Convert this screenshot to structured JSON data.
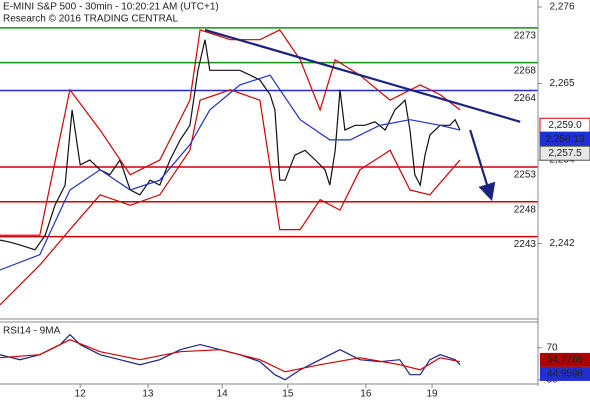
{
  "chart_data": {
    "type": "line",
    "title": "E-MINI S&P 500 - 30min - 10:20:21 AM (UTC+1)",
    "subtitle": "Research © 2016 TRADING CENTRAL",
    "xlim": [
      0,
      100
    ],
    "xticks": [
      {
        "value": 14.9,
        "label": "12"
      },
      {
        "value": 27.5,
        "label": "13"
      },
      {
        "value": 41.3,
        "label": "14"
      },
      {
        "value": 53.5,
        "label": "15"
      },
      {
        "value": 68.0,
        "label": "16"
      },
      {
        "value": 80.3,
        "label": "19"
      }
    ],
    "ylim": [
      2231.3,
      2277
    ],
    "yticks": [
      {
        "value": 2276,
        "label": "2,276"
      },
      {
        "value": 2265,
        "label": "2,265"
      },
      {
        "value": 2254,
        "label": "2,254"
      },
      {
        "value": 2242,
        "label": "2,242"
      }
    ],
    "levels": [
      {
        "value": 2273,
        "color": "#1a8c1a"
      },
      {
        "value": 2268,
        "color": "#1a8c1a"
      },
      {
        "value": 2264,
        "color": "#1f2fd0"
      },
      {
        "value": 2253,
        "color": "#d40000"
      },
      {
        "value": 2248,
        "color": "#d40000"
      },
      {
        "value": 2243,
        "color": "#d40000"
      }
    ],
    "series": [
      {
        "name": "Price",
        "color": "#111111",
        "x": [
          0,
          1.9,
          3.7,
          6.5,
          8.4,
          10.2,
          12.1,
          13.4,
          14.9,
          16.7,
          18.6,
          20.4,
          22.3,
          24.2,
          26.0,
          27.9,
          29.7,
          31.6,
          33.5,
          35.3,
          36.8,
          38.1,
          39.0,
          40.9,
          42.8,
          44.6,
          46.5,
          48.3,
          50.2,
          51.1,
          52.0,
          53.0,
          54.8,
          56.7,
          58.6,
          60.4,
          61.3,
          62.3,
          63.2,
          64.1,
          66.0,
          67.8,
          69.7,
          71.6,
          73.4,
          75.3,
          76.2,
          77.1,
          78.1,
          79.0,
          79.9,
          81.8,
          83.6,
          84.6,
          85.5
        ],
        "values": [
          2242.5,
          2242.2,
          2241.8,
          2241.1,
          2243.2,
          2247.5,
          2250.4,
          2261.2,
          2253.3,
          2254.0,
          2252.6,
          2251.9,
          2254.0,
          2249.7,
          2249.0,
          2251.1,
          2250.4,
          2254.0,
          2256.9,
          2259.0,
          2266.9,
          2271.3,
          2266.9,
          2266.9,
          2266.9,
          2266.9,
          2266.2,
          2265.5,
          2263.4,
          2261.2,
          2251.1,
          2251.1,
          2254.7,
          2255.4,
          2254.0,
          2252.6,
          2250.4,
          2255.4,
          2264.1,
          2258.3,
          2259.0,
          2259.0,
          2259.5,
          2258.3,
          2261.2,
          2262.6,
          2258.3,
          2251.9,
          2250.4,
          2254.7,
          2257.6,
          2259.0,
          2259.0,
          2259.8,
          2258.3
        ]
      },
      {
        "name": "Upper band",
        "color": "#d40000",
        "x": [
          0,
          7.4,
          13.0,
          18.6,
          24.2,
          29.7,
          35.3,
          37.2,
          42.8,
          48.3,
          52.0,
          55.8,
          59.5,
          62.3,
          66.9,
          72.5,
          78.1,
          81.8,
          85.5
        ],
        "values": [
          2243.2,
          2243.2,
          2264.1,
          2258.3,
          2251.9,
          2254.0,
          2262.6,
          2272.7,
          2271.3,
          2271.3,
          2272.7,
          2268.4,
          2261.2,
          2268.4,
          2266.2,
          2262.6,
          2264.8,
          2263.4,
          2261.2
        ]
      },
      {
        "name": "Lower band",
        "color": "#d40000",
        "x": [
          0,
          7.4,
          13.0,
          18.6,
          24.2,
          29.7,
          35.3,
          37.2,
          42.8,
          48.3,
          52.0,
          55.8,
          59.5,
          63.2,
          66.9,
          72.5,
          76.2,
          79.9,
          85.5
        ],
        "values": [
          2233.2,
          2238.9,
          2244.0,
          2249.0,
          2247.5,
          2249.0,
          2255.4,
          2262.6,
          2264.1,
          2262.6,
          2244.0,
          2244.0,
          2248.3,
          2246.8,
          2252.6,
          2255.4,
          2249.7,
          2249.0,
          2254.0
        ]
      },
      {
        "name": "Moving average",
        "color": "#1f2fd0",
        "x": [
          0,
          7.4,
          13.0,
          18.6,
          24.2,
          29.7,
          35.3,
          39.0,
          44.6,
          50.2,
          55.8,
          61.3,
          65.1,
          70.6,
          76.2,
          81.8,
          85.5
        ],
        "values": [
          2238.2,
          2240.4,
          2249.7,
          2252.6,
          2249.7,
          2251.1,
          2256.2,
          2261.2,
          2264.8,
          2266.2,
          2259.8,
          2256.9,
          2256.9,
          2259.0,
          2259.8,
          2259.0,
          2258.3
        ]
      },
      {
        "name": "Trendline",
        "color": "#1a237e",
        "x": [
          38.1,
          96.7
        ],
        "values": [
          2272.7,
          2259.5
        ]
      },
      {
        "name": "Forecast",
        "color": "#1a237e",
        "x": [
          87.4,
          91.1
        ],
        "values": [
          2258.3,
          2249.0
        ]
      }
    ],
    "value_tags": [
      {
        "value": 2259.0,
        "label": "2,259.0",
        "color": "#d40000",
        "text_color": "#d40000",
        "bg": "#ffffff"
      },
      {
        "value": 2258.13,
        "label": "2,258.13",
        "color": "#1f2fd0",
        "text_color": "#ffffff",
        "bg": "#1f2fd0"
      },
      {
        "value": 2257.5,
        "label": "2,257.5",
        "color": "#555555",
        "text_color": "#111111",
        "bg": "#e8e8e8"
      }
    ],
    "rsi": {
      "title": "RSI14 - 9MA",
      "ylim": [
        26,
        102
      ],
      "yticks": [
        70,
        30
      ],
      "series": [
        {
          "name": "RSI14",
          "color": "#1a237e",
          "x": [
            0,
            3.7,
            7.4,
            11.2,
            13.0,
            14.9,
            18.6,
            22.3,
            26.0,
            29.7,
            33.5,
            37.2,
            40.9,
            44.6,
            48.3,
            51.1,
            53.0,
            55.8,
            59.5,
            63.2,
            66.9,
            70.6,
            74.3,
            76.2,
            78.1,
            79.9,
            81.8,
            84.6,
            85.5
          ],
          "values": [
            61.3,
            55,
            61.3,
            73.8,
            86.3,
            73.8,
            61.3,
            55,
            48.8,
            55,
            67.5,
            73.8,
            67.5,
            61.3,
            52.5,
            36.3,
            30,
            42.5,
            55,
            67.5,
            55,
            52.5,
            55,
            36.3,
            36.3,
            55,
            61.3,
            55,
            48.8
          ]
        },
        {
          "name": "9MA",
          "color": "#d40000",
          "x": [
            0,
            7.4,
            13.0,
            18.6,
            26.0,
            33.5,
            40.9,
            48.3,
            53.0,
            59.5,
            66.9,
            74.3,
            78.1,
            81.8,
            85.5
          ],
          "values": [
            57.5,
            61.3,
            80,
            65,
            55,
            65,
            67.5,
            55,
            40,
            48.8,
            57.5,
            48.8,
            42.5,
            57.5,
            52.5
          ]
        }
      ],
      "value_tags": [
        {
          "value": 54.7766,
          "label": "54.7766",
          "bg": "#b00000",
          "text_color": "#ffffff"
        },
        {
          "value": 44.9598,
          "label": "44.9598",
          "bg": "#1f2fd0",
          "text_color": "#ffffff"
        }
      ]
    }
  }
}
